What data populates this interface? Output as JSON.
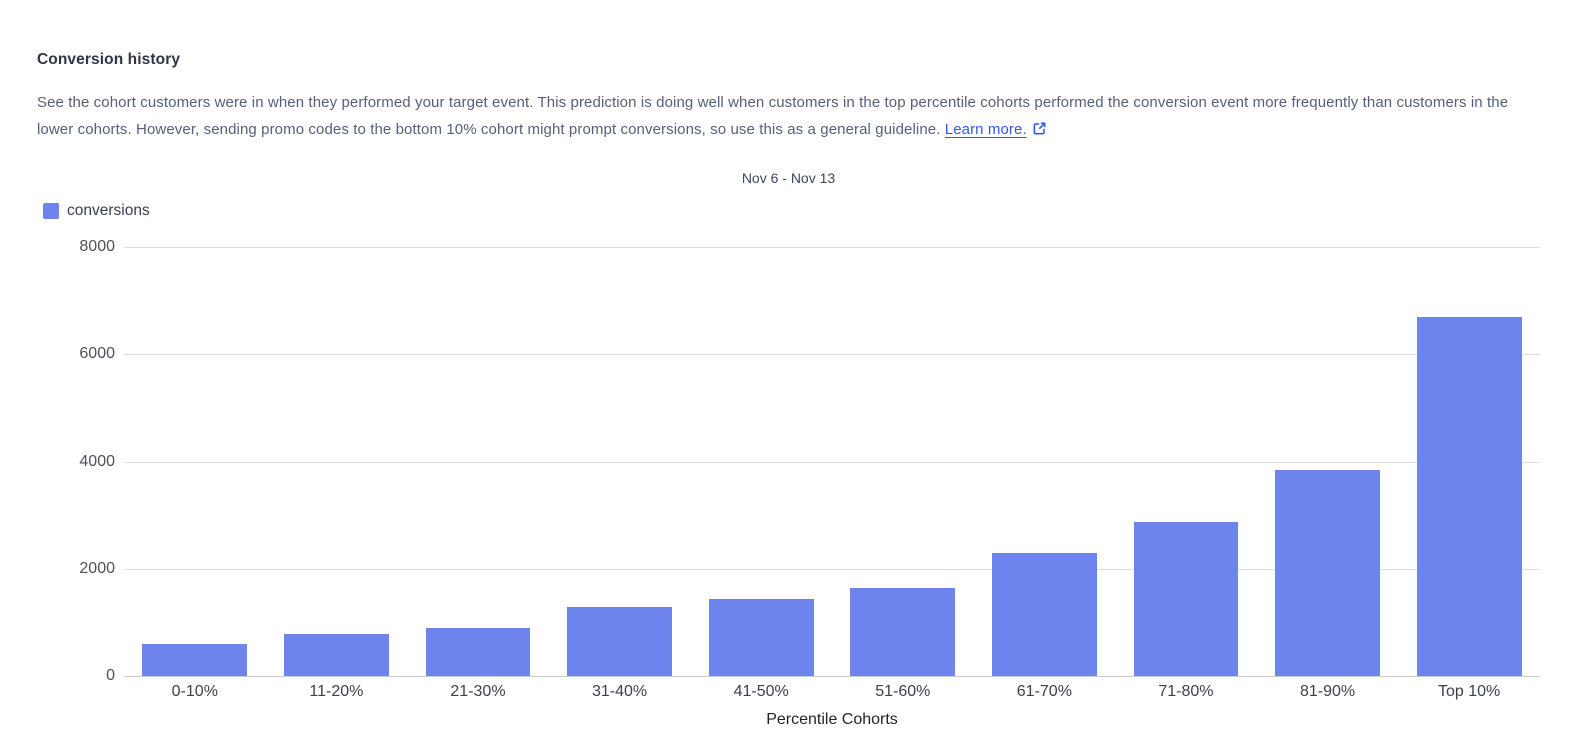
{
  "header": {
    "title": "Conversion history",
    "description": "See the cohort customers were in when they performed your target event. This prediction is doing well when customers in the top percentile cohorts performed the conversion event more frequently than customers in the lower cohorts. However, sending promo codes to the bottom 10% cohort might prompt conversions, so use this as a general guideline. ",
    "learn_more_label": "Learn more.",
    "external_link_icon": "external-link-icon"
  },
  "colors": {
    "bar": "#6d84ec",
    "link": "#2d5be8",
    "gridline": "#dadce0"
  },
  "chart_data": {
    "type": "bar",
    "title": "Nov 6 - Nov 13",
    "series_name": "conversions",
    "categories": [
      "0-10%",
      "11-20%",
      "21-30%",
      "31-40%",
      "41-50%",
      "51-60%",
      "61-70%",
      "71-80%",
      "81-90%",
      "Top 10%"
    ],
    "values": [
      590,
      780,
      890,
      1280,
      1440,
      1640,
      2290,
      2880,
      3840,
      6690
    ],
    "xlabel": "Percentile Cohorts",
    "ylabel": "",
    "ylim": [
      0,
      8000
    ],
    "yticks": [
      0,
      2000,
      4000,
      6000,
      8000
    ],
    "grid": true,
    "legend_position": "top-left",
    "bar_color": "#6d84ec"
  }
}
